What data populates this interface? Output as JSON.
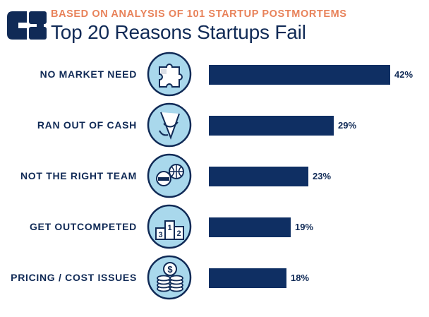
{
  "header": {
    "subtitle": "BASED ON ANALYSIS OF 101 STARTUP POSTMORTEMS",
    "title": "Top 20 Reasons Startups Fail"
  },
  "colors": {
    "bar": "#0f2f63",
    "text": "#102a56",
    "accent": "#e8825a",
    "icon_fill": "#a9d8ec"
  },
  "chart_data": {
    "type": "bar",
    "title": "Top 20 Reasons Startups Fail",
    "subtitle": "BASED ON ANALYSIS OF 101 STARTUP POSTMORTEMS",
    "orientation": "horizontal",
    "categories": [
      "NO MARKET NEED",
      "RAN OUT OF CASH",
      "NOT THE RIGHT TEAM",
      "GET OUTCOMPETED",
      "PRICING / COST ISSUES"
    ],
    "values": [
      42,
      29,
      23,
      19,
      18
    ],
    "value_labels": [
      "42%",
      "29%",
      "23%",
      "19%",
      "18%"
    ],
    "icons": [
      "puzzle-icon",
      "empty-pocket-icon",
      "team-icon",
      "podium-icon",
      "money-coins-icon"
    ],
    "podium_labels": [
      "3",
      "1",
      "2"
    ],
    "xlim": [
      0,
      42
    ],
    "grid": false,
    "legend": "none"
  }
}
